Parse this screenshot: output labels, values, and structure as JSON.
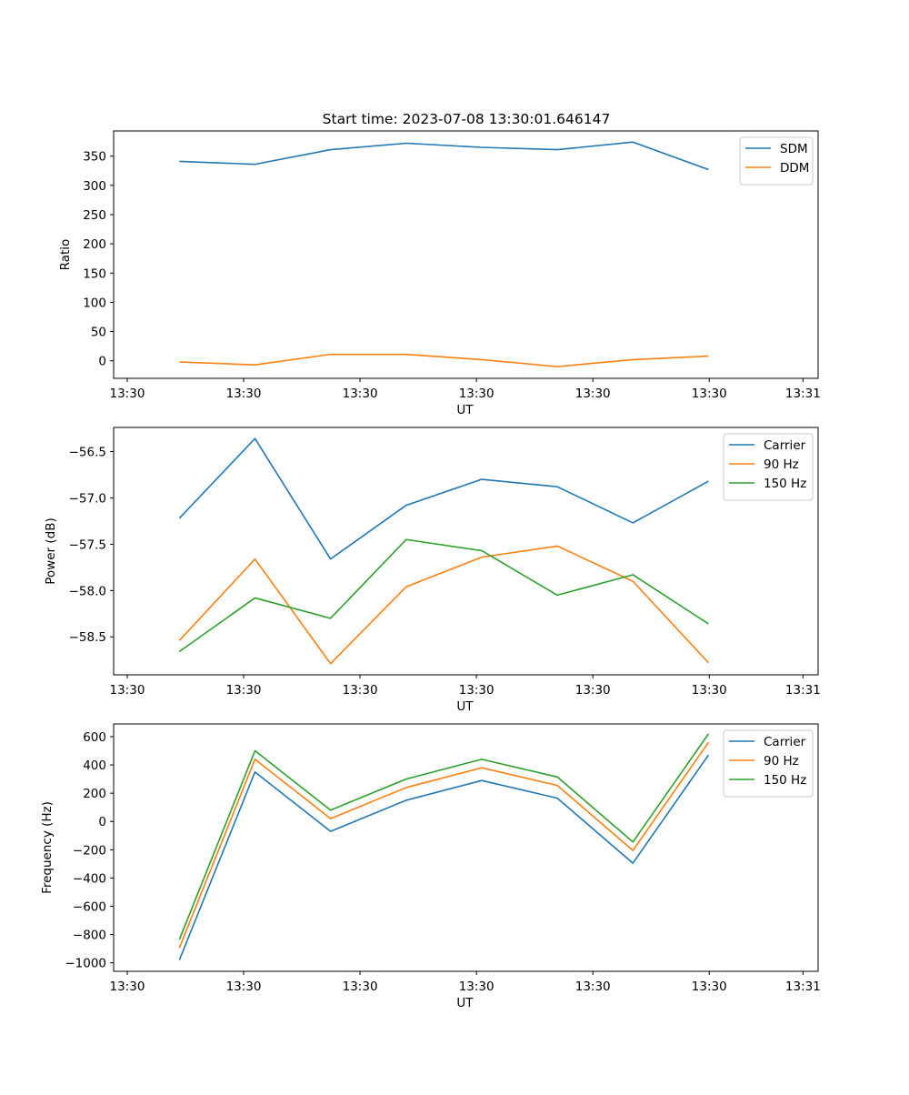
{
  "figure": {
    "title": "Start time: 2023-07-08 13:30:01.646147"
  },
  "chart_data": [
    {
      "type": "line",
      "title": "Start time: 2023-07-08 13:30:01.646147",
      "xlabel": "UT",
      "ylabel": "Ratio",
      "x": [
        1,
        2,
        3,
        4,
        5,
        6,
        7,
        8
      ],
      "xlim": [
        0.13,
        9.45
      ],
      "xticks": [
        {
          "x": 0.31,
          "label": "13:30"
        },
        {
          "x": 1.85,
          "label": "13:30"
        },
        {
          "x": 3.39,
          "label": "13:30"
        },
        {
          "x": 4.93,
          "label": "13:30"
        },
        {
          "x": 6.47,
          "label": "13:30"
        },
        {
          "x": 8.01,
          "label": "13:30"
        },
        {
          "x": 9.25,
          "label": "13:31"
        }
      ],
      "ylim": [
        -30,
        393
      ],
      "yticks": [
        0,
        50,
        100,
        150,
        200,
        250,
        300,
        350
      ],
      "yticklabels": [
        "0",
        "50",
        "100",
        "150",
        "200",
        "250",
        "300",
        "350"
      ],
      "legend_position": "top-right",
      "series": [
        {
          "name": "SDM",
          "color": "#1f77b4",
          "values": [
            341,
            336,
            361,
            372,
            365,
            361,
            374,
            327
          ]
        },
        {
          "name": "DDM",
          "color": "#ff7f0e",
          "values": [
            -2,
            -7,
            11,
            11,
            2,
            -10,
            2,
            8
          ]
        }
      ]
    },
    {
      "type": "line",
      "title": "",
      "xlabel": "UT",
      "ylabel": "Power (dB)",
      "x": [
        1,
        2,
        3,
        4,
        5,
        6,
        7,
        8
      ],
      "xlim": [
        0.13,
        9.45
      ],
      "xticks": [
        {
          "x": 0.31,
          "label": "13:30"
        },
        {
          "x": 1.85,
          "label": "13:30"
        },
        {
          "x": 3.39,
          "label": "13:30"
        },
        {
          "x": 4.93,
          "label": "13:30"
        },
        {
          "x": 6.47,
          "label": "13:30"
        },
        {
          "x": 8.01,
          "label": "13:30"
        },
        {
          "x": 9.25,
          "label": "13:31"
        }
      ],
      "ylim": [
        -58.91,
        -56.24
      ],
      "yticks": [
        -58.5,
        -58.0,
        -57.5,
        -57.0,
        -56.5
      ],
      "yticklabels": [
        "−58.5",
        "−58.0",
        "−57.5",
        "−57.0",
        "−56.5"
      ],
      "legend_position": "top-right",
      "series": [
        {
          "name": "Carrier",
          "color": "#1f77b4",
          "values": [
            -57.22,
            -56.36,
            -57.66,
            -57.08,
            -56.8,
            -56.88,
            -57.27,
            -56.82
          ]
        },
        {
          "name": "90 Hz",
          "color": "#ff7f0e",
          "values": [
            -58.54,
            -57.66,
            -58.79,
            -57.96,
            -57.64,
            -57.52,
            -57.9,
            -58.78
          ]
        },
        {
          "name": "150 Hz",
          "color": "#2ca02c",
          "values": [
            -58.66,
            -58.08,
            -58.3,
            -57.45,
            -57.57,
            -58.05,
            -57.83,
            -58.36
          ]
        }
      ]
    },
    {
      "type": "line",
      "title": "",
      "xlabel": "UT",
      "ylabel": "Frequency (Hz)",
      "x": [
        1,
        2,
        3,
        4,
        5,
        6,
        7,
        8
      ],
      "xlim": [
        0.13,
        9.45
      ],
      "xticks": [
        {
          "x": 0.31,
          "label": "13:30"
        },
        {
          "x": 1.85,
          "label": "13:30"
        },
        {
          "x": 3.39,
          "label": "13:30"
        },
        {
          "x": 4.93,
          "label": "13:30"
        },
        {
          "x": 6.47,
          "label": "13:30"
        },
        {
          "x": 8.01,
          "label": "13:30"
        },
        {
          "x": 9.25,
          "label": "13:31"
        }
      ],
      "ylim": [
        -1060,
        690
      ],
      "yticks": [
        -1000,
        -800,
        -600,
        -400,
        -200,
        0,
        200,
        400,
        600
      ],
      "yticklabels": [
        "−1000",
        "−800",
        "−600",
        "−400",
        "−200",
        "0",
        "200",
        "400",
        "600"
      ],
      "legend_position": "top-right",
      "series": [
        {
          "name": "Carrier",
          "color": "#1f77b4",
          "values": [
            -980,
            350,
            -70,
            150,
            290,
            165,
            -295,
            470
          ]
        },
        {
          "name": "90 Hz",
          "color": "#ff7f0e",
          "values": [
            -895,
            440,
            20,
            240,
            380,
            255,
            -205,
            560
          ]
        },
        {
          "name": "150 Hz",
          "color": "#2ca02c",
          "values": [
            -835,
            500,
            80,
            300,
            440,
            315,
            -145,
            620
          ]
        }
      ]
    }
  ]
}
